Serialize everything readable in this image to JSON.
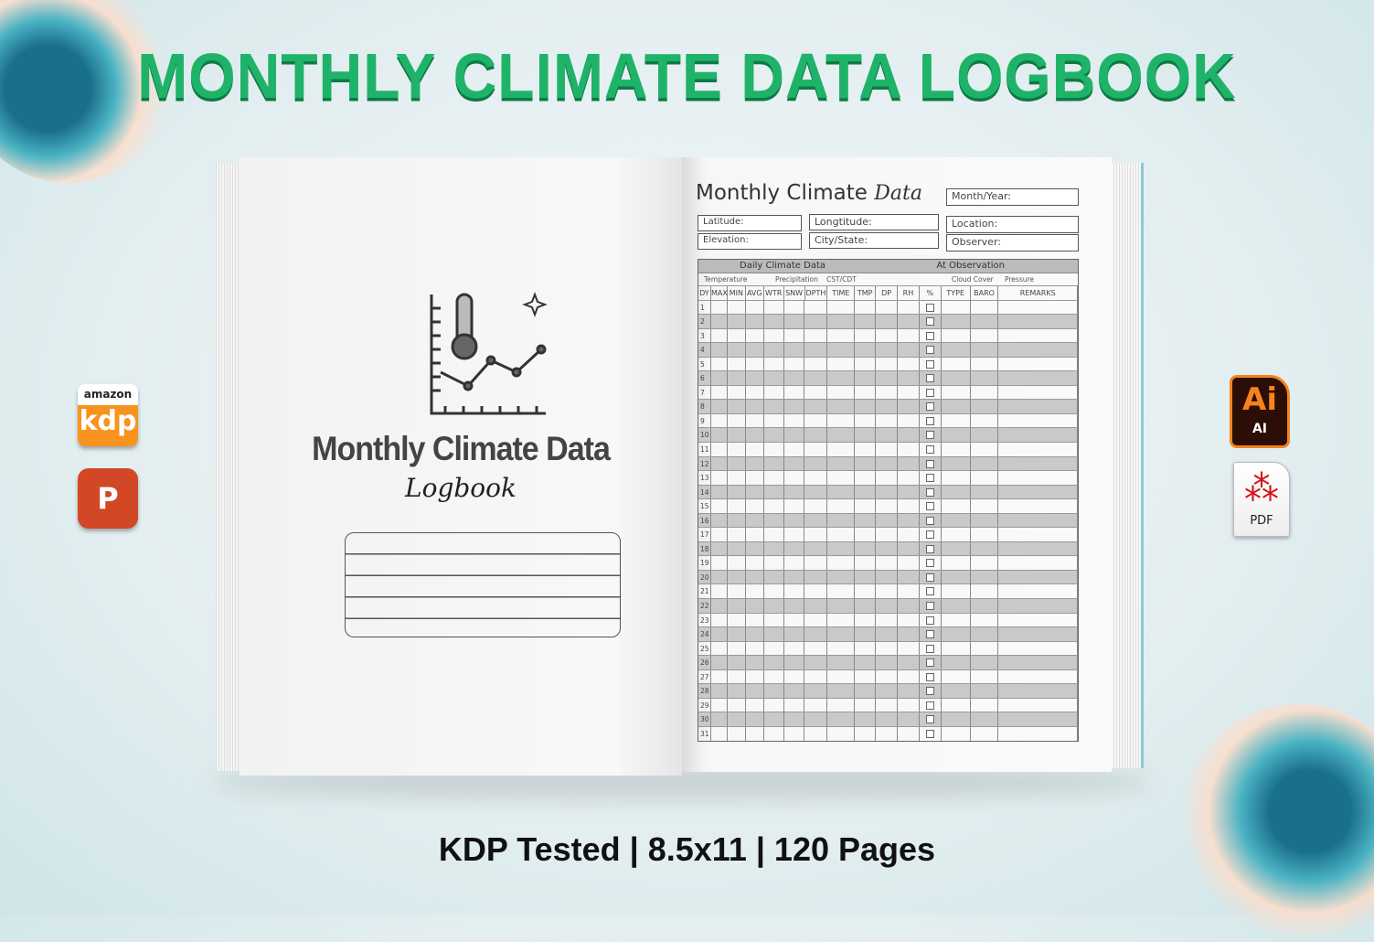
{
  "title": "MONTHLY CLIMATE DATA LOGBOOK",
  "footer": "KDP Tested | 8.5x11 | 120 Pages",
  "colors": {
    "title": "#1fb36a",
    "row_shade": "#c9c9c9",
    "ai_orange": "#f7821e"
  },
  "left_badges": {
    "kdp_top": "amazon",
    "kdp_main": "kdp",
    "ppt": "P"
  },
  "right_badges": {
    "ai_big": "Ai",
    "ai_small": "AI",
    "pdf": "PDF"
  },
  "cover": {
    "title": "Monthly Climate Data",
    "script": "Logbook",
    "icon": "thermometer-chart-icon"
  },
  "sheet": {
    "title": "Monthly Climate",
    "title_script": "Data",
    "fields": {
      "month_year": "Month/Year:",
      "latitude": "Latitude:",
      "longitude": "Longtitude:",
      "location": "Location:",
      "elevation": "Elevation:",
      "city_state": "City/State:",
      "observer": "Observer:"
    },
    "section_left": "Daily Climate Data",
    "section_right": "At Observation",
    "groups": {
      "temperature": "Temperature",
      "precipitation": "Precipitation",
      "cst": "CST/CDT",
      "cloud": "Cloud Cover",
      "pressure": "Pressure"
    },
    "columns": [
      "DY",
      "MAX",
      "MIN",
      "AVG",
      "WTR",
      "SNW",
      "DPTH",
      "TIME",
      "TMP",
      "DP",
      "RH",
      "%",
      "TYPE",
      "BARO",
      "REMARKS"
    ],
    "days": [
      "1",
      "2",
      "3",
      "4",
      "5",
      "6",
      "7",
      "8",
      "9",
      "10",
      "11",
      "12",
      "13",
      "14",
      "15",
      "16",
      "17",
      "18",
      "19",
      "20",
      "21",
      "22",
      "23",
      "24",
      "25",
      "26",
      "27",
      "28",
      "29",
      "30",
      "31"
    ]
  }
}
